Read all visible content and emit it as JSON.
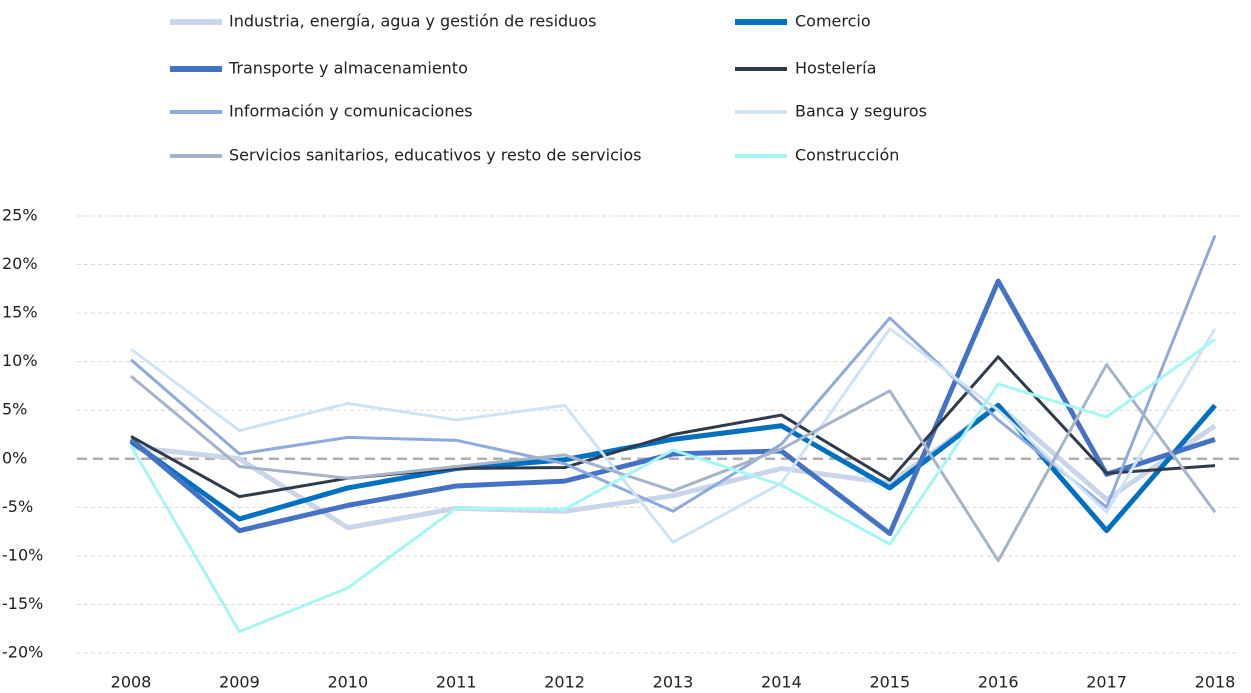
{
  "chart_data": {
    "type": "line",
    "categories": [
      "2008",
      "2009",
      "2010",
      "2011",
      "2012",
      "2013",
      "2014",
      "2015",
      "2016",
      "2017",
      "2018"
    ],
    "series": [
      {
        "name": "Industria, energía, agua y gestión de residuos",
        "color": "#c9d5ea",
        "width": 5,
        "values": [
          1.2,
          0,
          -7.1,
          -5.1,
          -5.4,
          -3.8,
          -1.0,
          -2.5,
          5.5,
          -4.2,
          3.4
        ]
      },
      {
        "name": "Comercio",
        "color": "#0070c0",
        "width": 5,
        "values": [
          1.8,
          -6.2,
          -3.0,
          -1.0,
          -0.1,
          2.0,
          3.4,
          -3.0,
          5.5,
          -7.4,
          5.5
        ]
      },
      {
        "name": "Transporte y almacenamiento",
        "color": "#4472c4",
        "width": 5,
        "values": [
          2.0,
          -7.4,
          -4.8,
          -2.8,
          -2.3,
          0.5,
          0.8,
          -7.7,
          18.3,
          -1.6,
          2.0
        ]
      },
      {
        "name": "Hostelería",
        "color": "#2f3b4c",
        "width": 3,
        "values": [
          2.3,
          -3.9,
          -2.0,
          -1.0,
          -0.9,
          2.5,
          4.5,
          -2.2,
          10.5,
          -1.5,
          -0.7
        ]
      },
      {
        "name": "Información y comunicaciones",
        "color": "#8faadc",
        "width": 3,
        "values": [
          10.2,
          0.5,
          2.2,
          1.9,
          -0.5,
          -5.4,
          1.5,
          14.5,
          4.0,
          -5.0,
          23.0
        ]
      },
      {
        "name": "Banca y seguros",
        "color": "#cde4f7",
        "width": 3,
        "values": [
          11.3,
          2.9,
          5.7,
          4.0,
          5.5,
          -8.6,
          -2.5,
          13.4,
          5.0,
          -5.5,
          13.4
        ]
      },
      {
        "name": "Servicios sanitarios, educativos y resto de servicios",
        "color": "#a5b4c8",
        "width": 3,
        "values": [
          8.5,
          -0.8,
          -2.0,
          -0.8,
          0.4,
          -3.3,
          1.0,
          7.0,
          -10.5,
          9.7,
          -5.5
        ]
      },
      {
        "name": "Construcción",
        "color": "#a6f6f6",
        "width": 3,
        "values": [
          1.3,
          -17.8,
          -13.3,
          -5.1,
          -5.2,
          0.9,
          -2.7,
          -8.8,
          7.7,
          4.3,
          12.3
        ]
      }
    ],
    "ylim": [
      -20,
      25
    ],
    "yticks": [
      {
        "value": -20,
        "label": "-20%"
      },
      {
        "value": -15,
        "label": "-15%"
      },
      {
        "value": -10,
        "label": "-10%"
      },
      {
        "value": -5,
        "label": "-5%"
      },
      {
        "value": 0,
        "label": "0%"
      },
      {
        "value": 5,
        "label": "5%"
      },
      {
        "value": 10,
        "label": "10%"
      },
      {
        "value": 15,
        "label": "15%"
      },
      {
        "value": 20,
        "label": "20%"
      },
      {
        "value": 25,
        "label": "25%"
      }
    ],
    "grid": true
  }
}
